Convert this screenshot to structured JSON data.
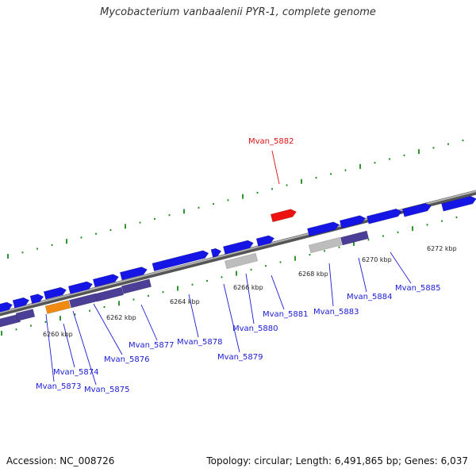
{
  "title": "Mycobacterium vanbaalenii PYR-1, complete genome",
  "footer": {
    "accession": "Accession: NC_008726",
    "summary": "Topology: circular; Length: 6,491,865 bp; Genes: 6,037"
  },
  "colors": {
    "backbone": "#7a7a7a",
    "tick": "#1a8a1a",
    "gene_forward": "#1515e6",
    "gene_reverse": "#4a3e96",
    "gene_highlight": "#ee1111",
    "gene_orange": "#f08a10",
    "gene_gray": "#bdbdbd",
    "label_default": "#1a1ad6",
    "label_highlight": "#dd1111"
  },
  "scale_labels": [
    "6260 kbp",
    "6262 kbp",
    "6264 kbp",
    "6266 kbp",
    "6268 kbp",
    "6270 kbp",
    "6272 kbp"
  ],
  "highlighted_gene": "Mvan_5882",
  "gene_labels": [
    "Mvan_5873",
    "Mvan_5874",
    "Mvan_5875",
    "Mvan_5876",
    "Mvan_5877",
    "Mvan_5878",
    "Mvan_5879",
    "Mvan_5880",
    "Mvan_5881",
    "Mvan_5882",
    "Mvan_5883",
    "Mvan_5884",
    "Mvan_5885"
  ]
}
